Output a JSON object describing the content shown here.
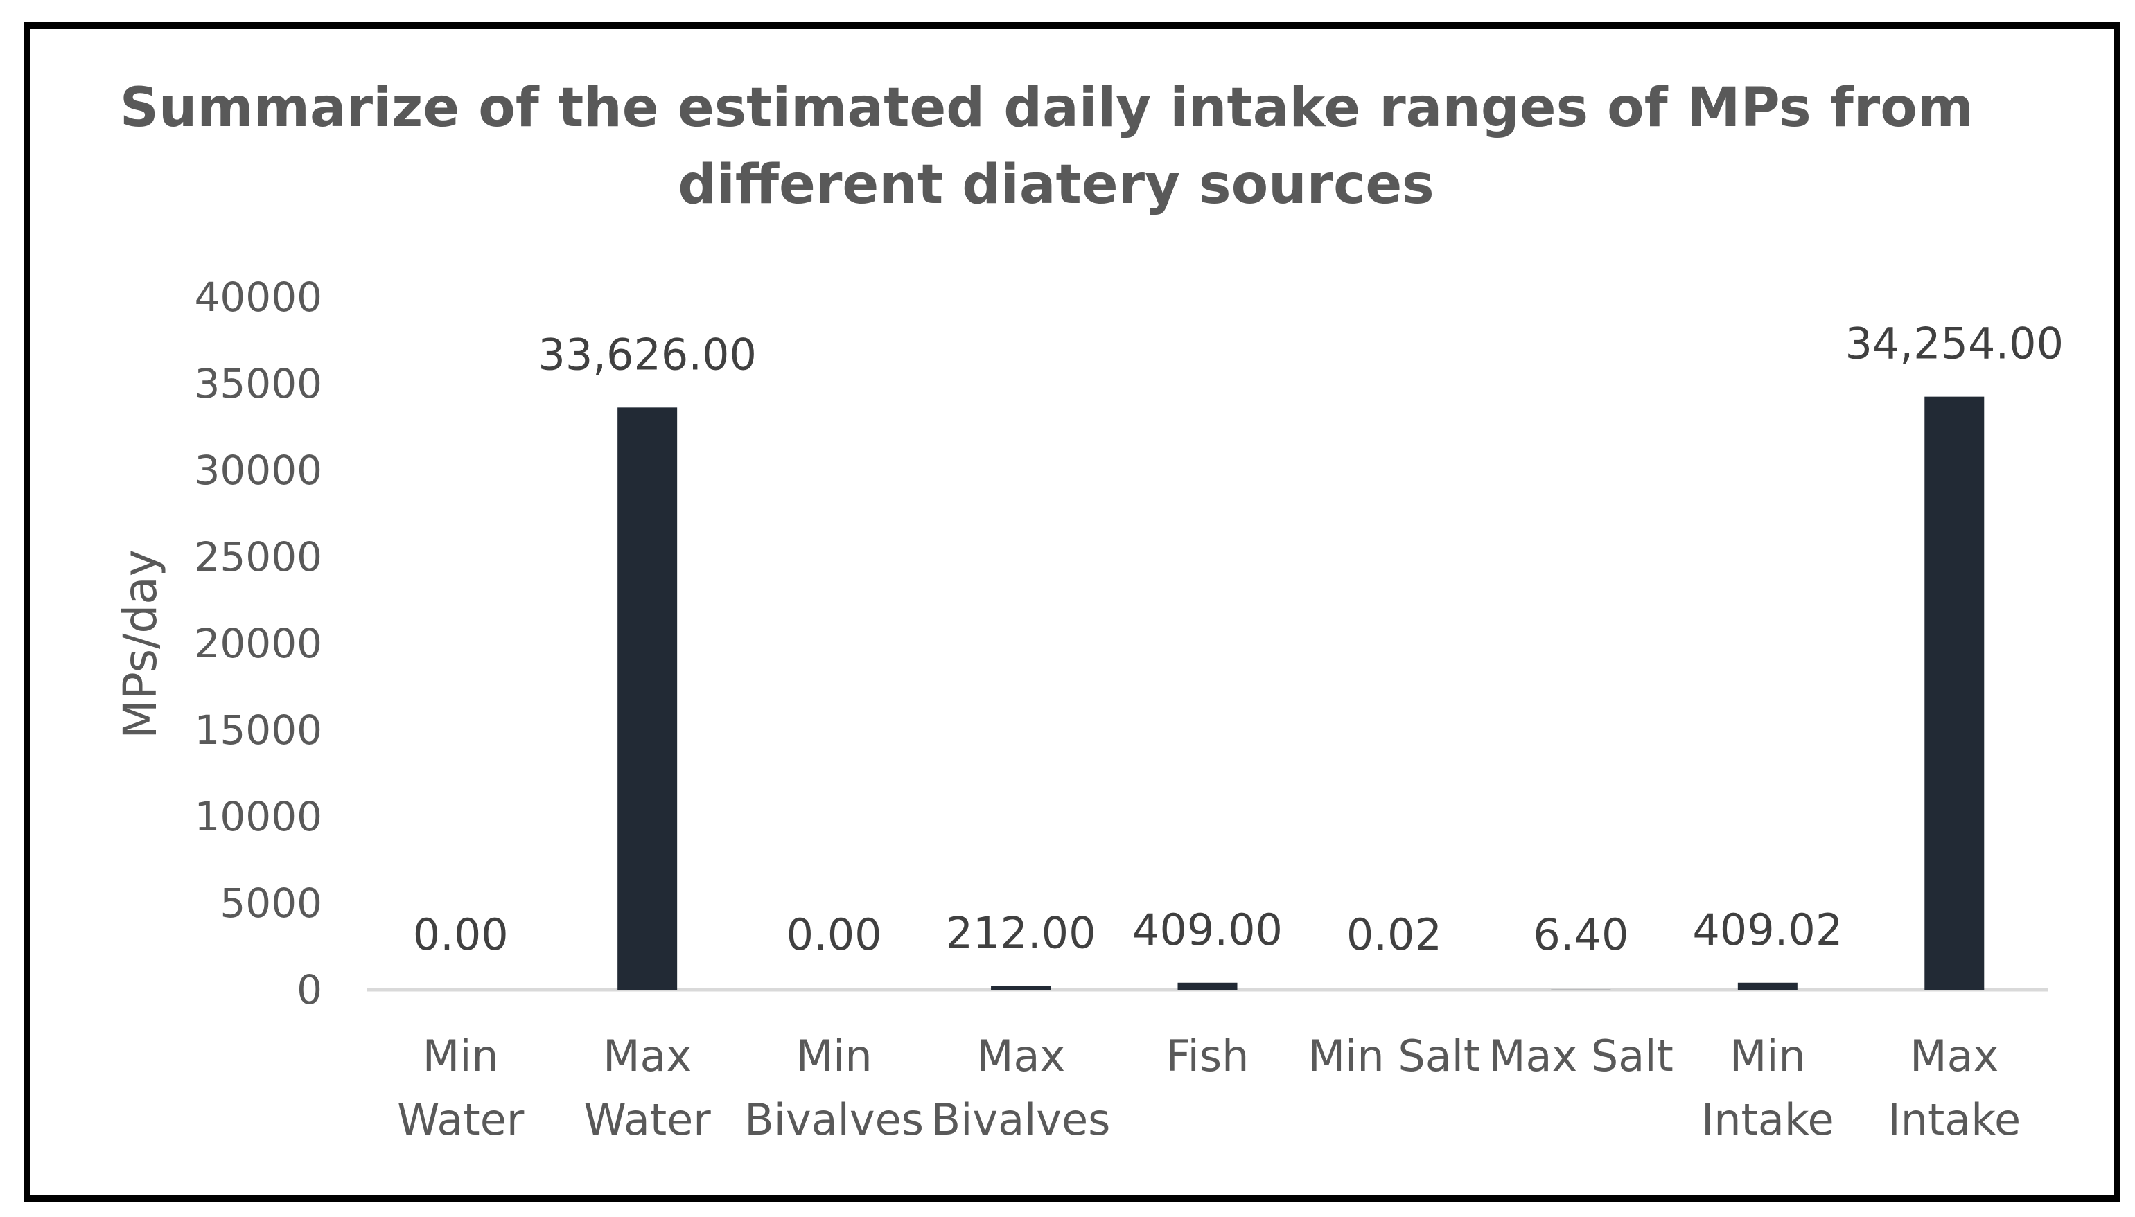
{
  "chart_data": {
    "type": "bar",
    "title_lines": [
      "Summarize of the estimated daily intake ranges of MPs from",
      "different diatery sources"
    ],
    "xlabel": "",
    "ylabel": "MPs/day",
    "ylim": [
      0,
      40000
    ],
    "yticks": [
      "0",
      "5000",
      "10000",
      "15000",
      "20000",
      "25000",
      "30000",
      "35000",
      "40000"
    ],
    "grid": false,
    "legend": "none",
    "bar_color": "#222a35",
    "categories": [
      [
        "Min",
        "Water"
      ],
      [
        "Max",
        "Water"
      ],
      [
        "Min",
        "Bivalves"
      ],
      [
        "Max",
        "Bivalves"
      ],
      [
        "Fish"
      ],
      [
        "Min Salt"
      ],
      [
        "Max Salt"
      ],
      [
        "Min",
        "Intake"
      ],
      [
        "Max",
        "Intake"
      ]
    ],
    "values": [
      0.0,
      33626.0,
      0.0,
      212.0,
      409.0,
      0.02,
      6.4,
      409.02,
      34254.0
    ],
    "data_labels": [
      "0.00",
      "33,626.00",
      "0.00",
      "212.00",
      "409.00",
      "0.02",
      "6.40",
      "409.02",
      "34,254.00"
    ]
  }
}
